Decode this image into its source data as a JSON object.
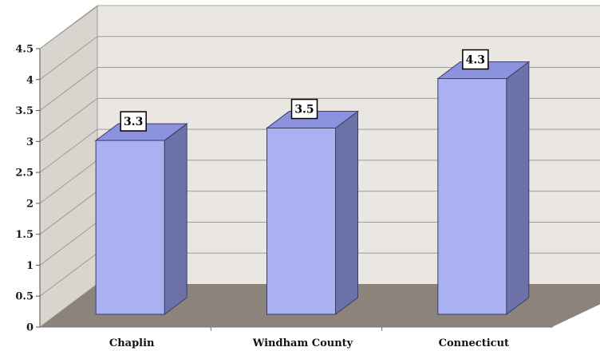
{
  "chart_data": {
    "type": "bar",
    "style": "3d",
    "categories": [
      "Chaplin",
      "Windham County",
      "Connecticut"
    ],
    "values": [
      3.3,
      3.5,
      4.3
    ],
    "data_labels": [
      "3.3",
      "3.5",
      "4.3"
    ],
    "ylim": [
      0,
      4.5
    ],
    "yticks": [
      "0",
      "0.5",
      "1",
      "1.5",
      "2",
      "2.5",
      "3",
      "3.5",
      "4",
      "4.5"
    ],
    "grid": true,
    "legend": "none"
  },
  "colors": {
    "bar_front": "#a9b1f2",
    "bar_top": "#8b93df",
    "bar_side": "#6c72a8",
    "back_wall": "#eae6e1",
    "side_wall": "#d9d4ce",
    "floor": "#8c847a",
    "gridline": "#9e9a94",
    "label_bg": "#ffffff"
  }
}
